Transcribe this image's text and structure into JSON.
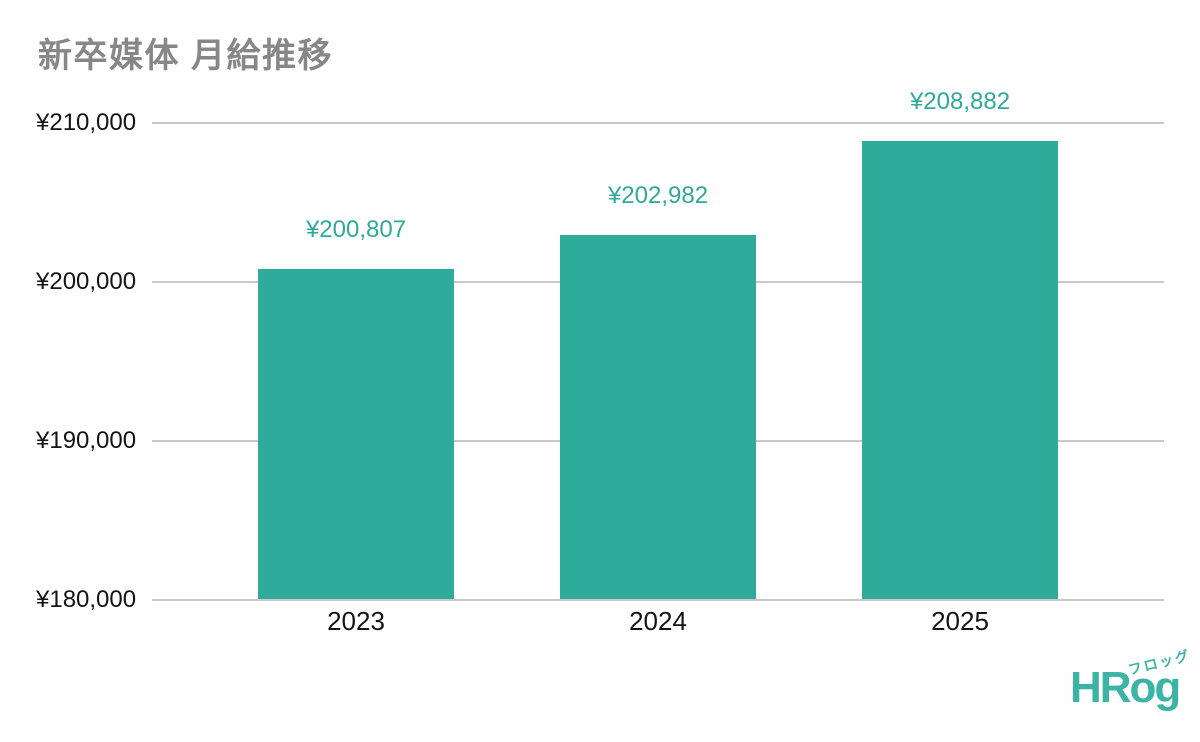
{
  "title": "新卒媒体 月給推移",
  "colors": {
    "bar": "#2fab9b",
    "value_label": "#2fa99b",
    "grid": "#c9c9c9",
    "title_text": "#878787",
    "tick_text": "#141414",
    "logo": "#3cb4a5"
  },
  "logo": {
    "text": "HRog",
    "kana": "フロッグ"
  },
  "chart_data": {
    "type": "bar",
    "title": "新卒媒体 月給推移",
    "categories": [
      "2023",
      "2024",
      "2025"
    ],
    "values": [
      200807,
      202982,
      208882
    ],
    "value_labels": [
      "¥200,807",
      "¥202,982",
      "¥208,882"
    ],
    "xlabel": "",
    "ylabel": "",
    "ylim": [
      180000,
      210000
    ],
    "yticks": [
      {
        "value": 210000,
        "label": "¥210,000"
      },
      {
        "value": 200000,
        "label": "¥200,000"
      },
      {
        "value": 190000,
        "label": "¥190,000"
      },
      {
        "value": 180000,
        "label": "¥180,000"
      }
    ],
    "grid": true,
    "legend": false
  }
}
